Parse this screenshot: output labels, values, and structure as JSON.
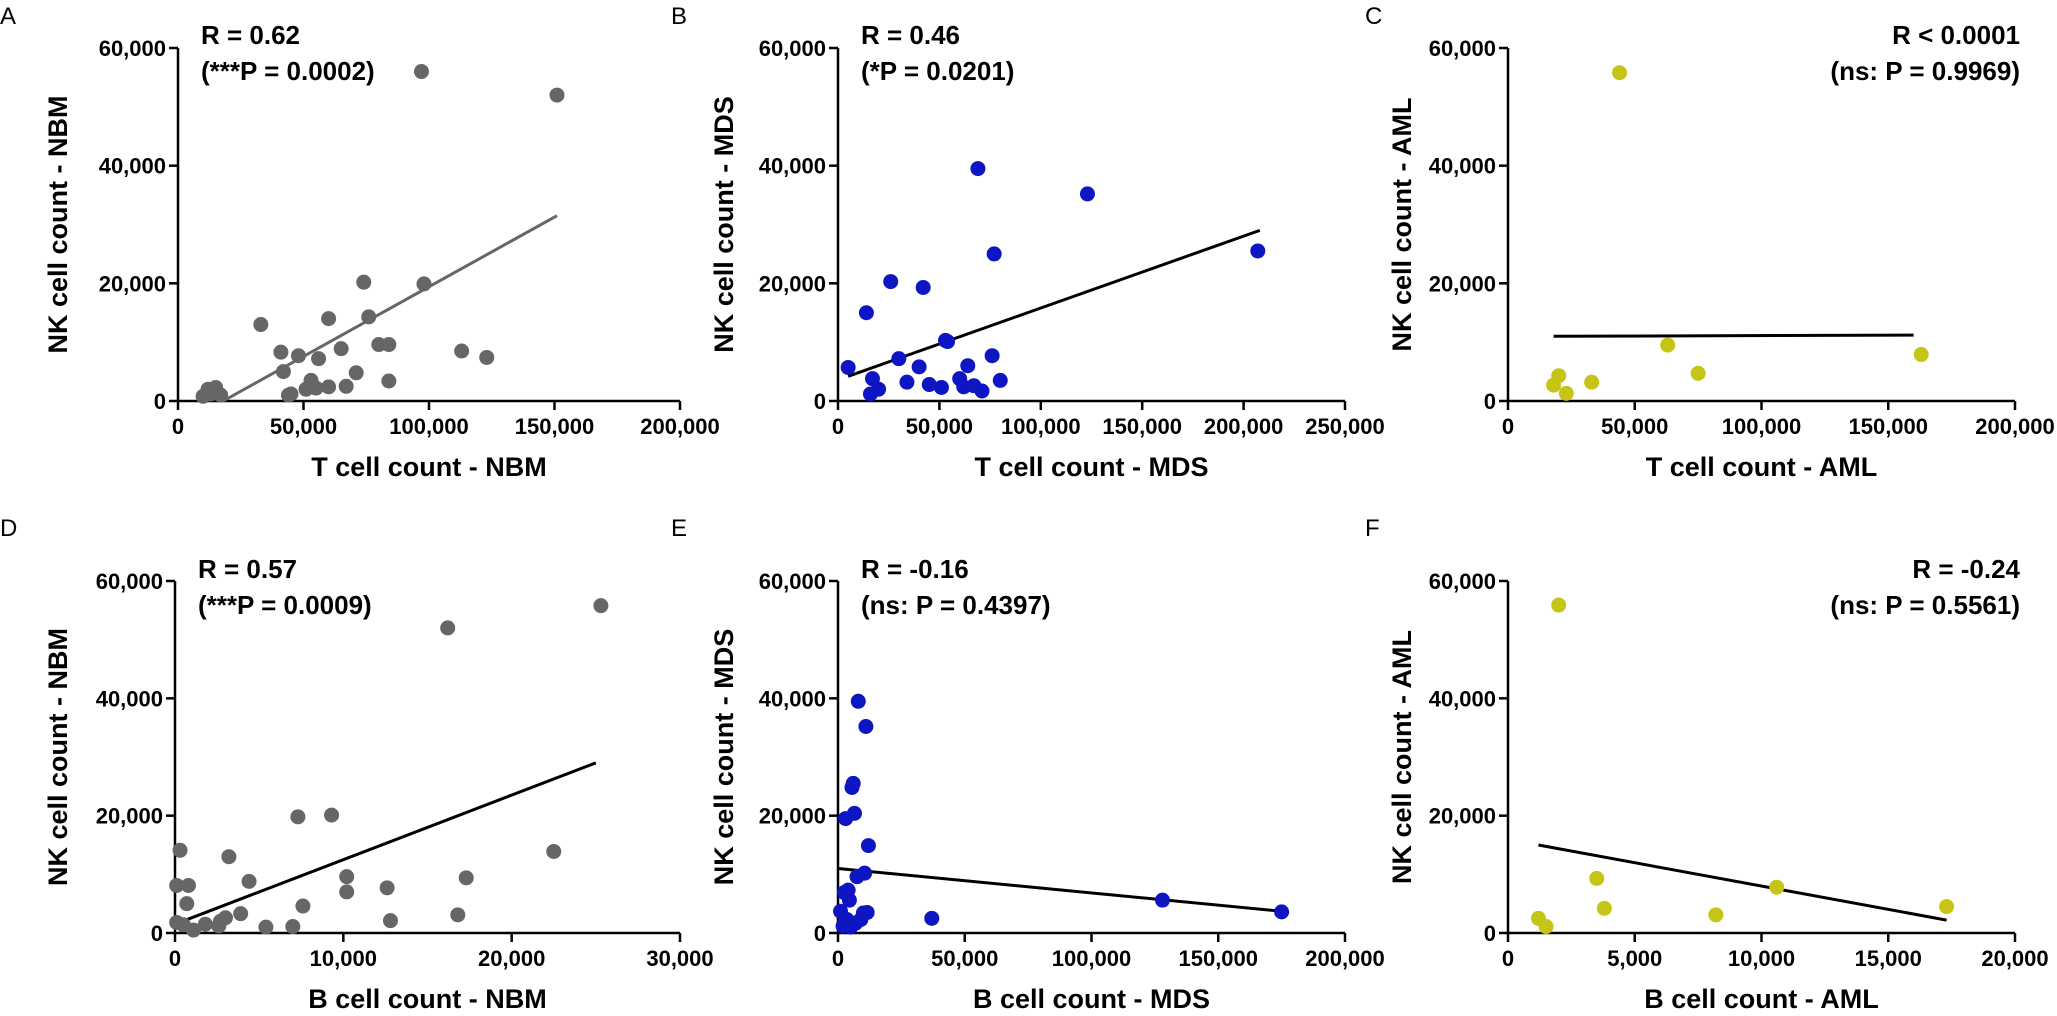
{
  "colors": {
    "NBM": "#666666",
    "MDS": "#0d16c2",
    "AML": "#c5c516",
    "axis": "#000000"
  },
  "chart_data": [
    {
      "panel": "A",
      "type": "scatter",
      "group": "NBM",
      "xlabel": "T cell count - NBM",
      "ylabel": "NK cell count - NBM",
      "xlim": [
        0,
        200000
      ],
      "ylim": [
        0,
        60000
      ],
      "xticks": [
        0,
        50000,
        100000,
        150000,
        200000
      ],
      "xtick_labels": [
        "0",
        "50,000",
        "100,000",
        "150,000",
        "200,000"
      ],
      "yticks": [
        0,
        20000,
        40000,
        60000
      ],
      "ytick_labels": [
        "0",
        "20,000",
        "40,000",
        "60,000"
      ],
      "stat_line1": "R = 0.62",
      "stat_line2": "(***P = 0.0002)",
      "stat_align": "left",
      "line_color": "#666666",
      "fit": [
        [
          18000,
          0
        ],
        [
          151000,
          31500
        ]
      ],
      "points": [
        [
          10000,
          800
        ],
        [
          12000,
          2000
        ],
        [
          13000,
          1200
        ],
        [
          15000,
          2300
        ],
        [
          17000,
          1000
        ],
        [
          33000,
          13000
        ],
        [
          41000,
          8300
        ],
        [
          42000,
          5000
        ],
        [
          44000,
          1000
        ],
        [
          45000,
          1200
        ],
        [
          48000,
          7700
        ],
        [
          51000,
          2000
        ],
        [
          53000,
          3500
        ],
        [
          55000,
          2200
        ],
        [
          56000,
          7200
        ],
        [
          60000,
          14000
        ],
        [
          60000,
          2400
        ],
        [
          65000,
          8900
        ],
        [
          67000,
          2500
        ],
        [
          71000,
          4800
        ],
        [
          74000,
          20200
        ],
        [
          76000,
          14300
        ],
        [
          80000,
          9600
        ],
        [
          84000,
          9600
        ],
        [
          84000,
          3400
        ],
        [
          97000,
          56000
        ],
        [
          98000,
          19900
        ],
        [
          113000,
          8500
        ],
        [
          123000,
          7400
        ],
        [
          151000,
          52000
        ]
      ]
    },
    {
      "panel": "B",
      "type": "scatter",
      "group": "MDS",
      "xlabel": "T cell count - MDS",
      "ylabel": "NK cell count - MDS",
      "xlim": [
        0,
        250000
      ],
      "ylim": [
        0,
        60000
      ],
      "xticks": [
        0,
        50000,
        100000,
        150000,
        200000,
        250000
      ],
      "xtick_labels": [
        "0",
        "50,000",
        "100,000",
        "150,000",
        "200,000",
        "250,000"
      ],
      "yticks": [
        0,
        20000,
        40000,
        60000
      ],
      "ytick_labels": [
        "0",
        "20,000",
        "40,000",
        "60,000"
      ],
      "stat_line1": "R = 0.46",
      "stat_line2": "(*P = 0.0201)",
      "stat_align": "left",
      "line_color": "#000000",
      "fit": [
        [
          5000,
          4200
        ],
        [
          208000,
          29000
        ]
      ],
      "points": [
        [
          5000,
          5700
        ],
        [
          14000,
          15000
        ],
        [
          16000,
          1200
        ],
        [
          17000,
          3800
        ],
        [
          20000,
          2000
        ],
        [
          26000,
          20300
        ],
        [
          30000,
          7200
        ],
        [
          34000,
          3200
        ],
        [
          40000,
          5800
        ],
        [
          42000,
          19300
        ],
        [
          45000,
          2800
        ],
        [
          51000,
          2300
        ],
        [
          53000,
          10300
        ],
        [
          54000,
          10100
        ],
        [
          60000,
          3800
        ],
        [
          62000,
          2400
        ],
        [
          64000,
          6000
        ],
        [
          67000,
          2600
        ],
        [
          69000,
          39500
        ],
        [
          71000,
          1700
        ],
        [
          76000,
          7700
        ],
        [
          77000,
          25000
        ],
        [
          80000,
          3500
        ],
        [
          123000,
          35200
        ],
        [
          207000,
          25500
        ]
      ]
    },
    {
      "panel": "C",
      "type": "scatter",
      "group": "AML",
      "xlabel": "T cell count - AML",
      "ylabel": "NK cell count - AML",
      "xlim": [
        0,
        200000
      ],
      "ylim": [
        0,
        60000
      ],
      "xticks": [
        0,
        50000,
        100000,
        150000,
        200000
      ],
      "xtick_labels": [
        "0",
        "50,000",
        "100,000",
        "150,000",
        "200,000"
      ],
      "yticks": [
        0,
        20000,
        40000,
        60000
      ],
      "ytick_labels": [
        "0",
        "20,000",
        "40,000",
        "60,000"
      ],
      "stat_line1": "R < 0.0001",
      "stat_line2": "(ns: P = 0.9969)",
      "stat_align": "right",
      "line_color": "#000000",
      "fit": [
        [
          18000,
          11000
        ],
        [
          160000,
          11200
        ]
      ],
      "points": [
        [
          18000,
          2700
        ],
        [
          20000,
          4300
        ],
        [
          23000,
          1300
        ],
        [
          33000,
          3200
        ],
        [
          44000,
          55800
        ],
        [
          63000,
          9500
        ],
        [
          75000,
          4700
        ],
        [
          163000,
          7900
        ]
      ]
    },
    {
      "panel": "D",
      "type": "scatter",
      "group": "NBM",
      "xlabel": "B cell count - NBM",
      "ylabel": "NK cell count - NBM",
      "xlim": [
        0,
        30000
      ],
      "ylim": [
        0,
        60000
      ],
      "xticks": [
        0,
        10000,
        20000,
        30000
      ],
      "xtick_labels": [
        "0",
        "10,000",
        "20,000",
        "30,000"
      ],
      "yticks": [
        0,
        20000,
        40000,
        60000
      ],
      "ytick_labels": [
        "0",
        "20,000",
        "40,000",
        "60,000"
      ],
      "stat_line1": "R = 0.57",
      "stat_line2": "(***P = 0.0009)",
      "stat_align": "left",
      "line_color": "#000000",
      "fit": [
        [
          0,
          1500
        ],
        [
          25000,
          29000
        ]
      ],
      "points": [
        [
          100,
          1800
        ],
        [
          100,
          8100
        ],
        [
          300,
          14100
        ],
        [
          500,
          1400
        ],
        [
          700,
          5000
        ],
        [
          800,
          8100
        ],
        [
          1100,
          500
        ],
        [
          1800,
          1500
        ],
        [
          2600,
          1200
        ],
        [
          2700,
          2000
        ],
        [
          3000,
          2600
        ],
        [
          3200,
          13000
        ],
        [
          3900,
          3300
        ],
        [
          4400,
          8800
        ],
        [
          5400,
          1000
        ],
        [
          7000,
          1100
        ],
        [
          7300,
          19800
        ],
        [
          7600,
          4600
        ],
        [
          9300,
          20100
        ],
        [
          10200,
          9600
        ],
        [
          10200,
          7000
        ],
        [
          12600,
          7700
        ],
        [
          12800,
          2100
        ],
        [
          16200,
          52000
        ],
        [
          16800,
          3100
        ],
        [
          17300,
          9400
        ],
        [
          22500,
          13900
        ],
        [
          25300,
          55800
        ]
      ]
    },
    {
      "panel": "E",
      "type": "scatter",
      "group": "MDS",
      "xlabel": "B cell count - MDS",
      "ylabel": "NK cell count - MDS",
      "xlim": [
        0,
        200000
      ],
      "ylim": [
        0,
        60000
      ],
      "xticks": [
        0,
        50000,
        100000,
        150000,
        200000
      ],
      "xtick_labels": [
        "0",
        "50,000",
        "100,000",
        "150,000",
        "200,000"
      ],
      "yticks": [
        0,
        20000,
        40000,
        60000
      ],
      "ytick_labels": [
        "0",
        "20,000",
        "40,000",
        "60,000"
      ],
      "stat_line1": "R = -0.16",
      "stat_line2": "(ns: P = 0.4397)",
      "stat_align": "left",
      "line_color": "#000000",
      "fit": [
        [
          0,
          11000
        ],
        [
          175000,
          3700
        ]
      ],
      "points": [
        [
          1000,
          3700
        ],
        [
          2000,
          1200
        ],
        [
          2500,
          6900
        ],
        [
          3000,
          19500
        ],
        [
          3500,
          2300
        ],
        [
          4000,
          7300
        ],
        [
          4500,
          5600
        ],
        [
          5000,
          1000
        ],
        [
          5500,
          24800
        ],
        [
          6000,
          25500
        ],
        [
          6500,
          20400
        ],
        [
          7000,
          1700
        ],
        [
          7500,
          9600
        ],
        [
          8000,
          39500
        ],
        [
          9000,
          2300
        ],
        [
          10000,
          3400
        ],
        [
          10500,
          10200
        ],
        [
          11000,
          35200
        ],
        [
          11500,
          3500
        ],
        [
          12000,
          14900
        ],
        [
          37000,
          2500
        ],
        [
          128000,
          5600
        ],
        [
          175000,
          3600
        ]
      ]
    },
    {
      "panel": "F",
      "type": "scatter",
      "group": "AML",
      "xlabel": "B cell count - AML",
      "ylabel": "NK cell count - AML",
      "xlim": [
        0,
        20000
      ],
      "ylim": [
        0,
        60000
      ],
      "xticks": [
        0,
        5000,
        10000,
        15000,
        20000
      ],
      "xtick_labels": [
        "0",
        "5,000",
        "10,000",
        "15,000",
        "20,000"
      ],
      "yticks": [
        0,
        20000,
        40000,
        60000
      ],
      "ytick_labels": [
        "0",
        "20,000",
        "40,000",
        "60,000"
      ],
      "stat_line1": "R = -0.24",
      "stat_line2": "(ns: P = 0.5561)",
      "stat_align": "right",
      "line_color": "#000000",
      "fit": [
        [
          1200,
          15000
        ],
        [
          17300,
          2200
        ]
      ],
      "points": [
        [
          1200,
          2500
        ],
        [
          1500,
          1100
        ],
        [
          2000,
          55900
        ],
        [
          3500,
          9300
        ],
        [
          3800,
          4200
        ],
        [
          8200,
          3100
        ],
        [
          10600,
          7800
        ],
        [
          17300,
          4500
        ]
      ]
    }
  ]
}
